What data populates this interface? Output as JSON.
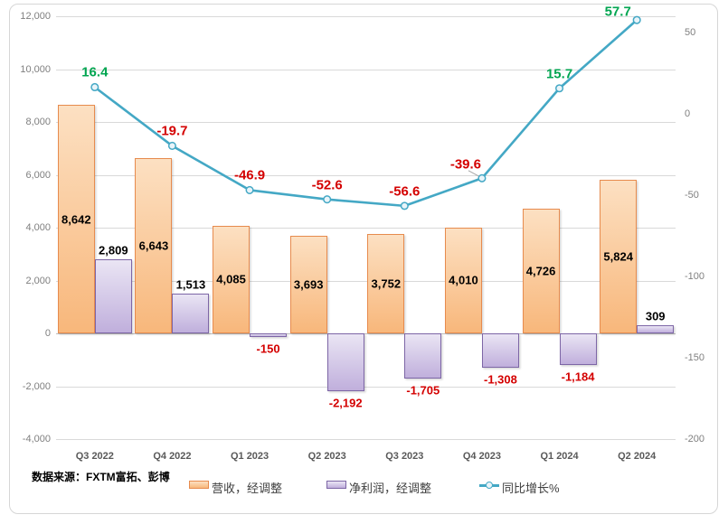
{
  "chart": {
    "source_label": "数据来源：FXTM富拓、彭博",
    "colors": {
      "revenue_fill_top": "#FCE0C2",
      "revenue_fill_bottom": "#F8B77B",
      "revenue_border": "#E78B4E",
      "netprofit_fill_top": "#EAE5F4",
      "netprofit_fill_bottom": "#C0AFDC",
      "netprofit_border": "#7D66A6",
      "growth_line": "#44A8C5",
      "marker_fill": "#E9F4F9",
      "positive_line_label": "#00A550",
      "negative_label": "#D40000",
      "bar_label": "#000000",
      "gridline": "#D9D9D9",
      "axis_tick": "#7F7F7F",
      "x_label": "#595959"
    },
    "legend": [
      {
        "label": "营收，经调整",
        "kind": "bar-orange"
      },
      {
        "label": "净利润，经调整",
        "kind": "bar-purple"
      },
      {
        "label": "同比增长%",
        "kind": "line"
      }
    ]
  },
  "chart_data": {
    "type": "combo bar+line, dual y-axis",
    "categories": [
      "Q3 2022",
      "Q4 2022",
      "Q1 2023",
      "Q2 2023",
      "Q3 2023",
      "Q4 2023",
      "Q1 2024",
      "Q2 2024"
    ],
    "series": [
      {
        "name": "营收，经调整",
        "type": "bar",
        "axis": "left",
        "values": [
          8642,
          6643,
          4085,
          3693,
          3752,
          4010,
          4726,
          5824
        ],
        "labels": [
          "8,642",
          "6,643",
          "4,085",
          "3,693",
          "3,752",
          "4,010",
          "4,726",
          "5,824"
        ]
      },
      {
        "name": "净利润，经调整",
        "type": "bar",
        "axis": "left",
        "values": [
          2809,
          1513,
          -150,
          -2192,
          -1705,
          -1308,
          -1184,
          309
        ],
        "labels": [
          "2,809",
          "1,513",
          "-150",
          "-2,192",
          "-1,705",
          "-1,308",
          "-1,184",
          "309"
        ]
      },
      {
        "name": "同比增长%",
        "type": "line",
        "axis": "right",
        "values": [
          16.4,
          -19.7,
          -46.9,
          -52.6,
          -56.6,
          -39.6,
          15.7,
          57.7
        ],
        "labels": [
          "16.4",
          "-19.7",
          "-46.9",
          "-52.6",
          "-56.6",
          "-39.6",
          "15.7",
          "57.7"
        ]
      }
    ],
    "left_axis": {
      "min": -4000,
      "max": 12000,
      "major_unit": 2000,
      "tick_labels": [
        "12,000",
        "10,000",
        "8,000",
        "6,000",
        "4,000",
        "2,000",
        "0",
        "-2,000",
        "-4,000"
      ]
    },
    "right_axis": {
      "min": -200,
      "max": 60,
      "major_unit": 50,
      "tick_labels": [
        "50",
        "0",
        "-50",
        "-100",
        "-150",
        "-200"
      ],
      "tick_values": [
        50,
        0,
        -50,
        -100,
        -150,
        -200
      ]
    },
    "grid": "horizontal major gridlines only",
    "legend_position": "bottom"
  }
}
